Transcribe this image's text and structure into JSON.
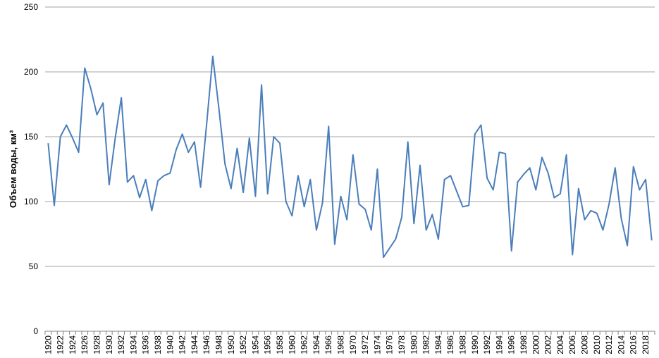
{
  "chart_data": {
    "type": "line",
    "title": "",
    "xlabel": "",
    "ylabel": "Объем воды, км³",
    "ylim": [
      0,
      250
    ],
    "yticks": [
      0,
      50,
      100,
      150,
      200,
      250
    ],
    "grid": "horizontal",
    "legend": "none",
    "line_color": "#4a7ebb",
    "grid_color": "#a6a6a6",
    "x": [
      1920,
      1921,
      1922,
      1923,
      1924,
      1925,
      1926,
      1927,
      1928,
      1929,
      1930,
      1931,
      1932,
      1933,
      1934,
      1935,
      1936,
      1937,
      1938,
      1939,
      1940,
      1941,
      1942,
      1943,
      1944,
      1945,
      1946,
      1947,
      1948,
      1949,
      1950,
      1951,
      1952,
      1953,
      1954,
      1955,
      1956,
      1957,
      1958,
      1959,
      1960,
      1961,
      1962,
      1963,
      1964,
      1965,
      1966,
      1967,
      1968,
      1969,
      1970,
      1971,
      1972,
      1973,
      1974,
      1975,
      1976,
      1977,
      1978,
      1979,
      1980,
      1981,
      1982,
      1983,
      1984,
      1985,
      1986,
      1987,
      1988,
      1989,
      1990,
      1991,
      1992,
      1993,
      1994,
      1995,
      1996,
      1997,
      1998,
      1999,
      2000,
      2001,
      2002,
      2003,
      2004,
      2005,
      2006,
      2007,
      2008,
      2009,
      2010,
      2011,
      2012,
      2013,
      2014,
      2015,
      2016,
      2017,
      2018,
      2019
    ],
    "xtick_labels": [
      "1920",
      "1922",
      "1924",
      "1926",
      "1928",
      "1930",
      "1932",
      "1934",
      "1936",
      "1938",
      "1940",
      "1942",
      "1944",
      "1946",
      "1948",
      "1950",
      "1952",
      "1954",
      "1956",
      "1958",
      "1960",
      "1962",
      "1964",
      "1966",
      "1968",
      "1970",
      "1972",
      "1974",
      "1976",
      "1978",
      "1980",
      "1982",
      "1984",
      "1986",
      "1988",
      "1990",
      "1992",
      "1994",
      "1996",
      "1998",
      "2000",
      "2002",
      "2004",
      "2006",
      "2008",
      "2010",
      "2012",
      "2014",
      "2016",
      "2018"
    ],
    "series": [
      {
        "values": [
          145,
          97,
          150,
          159,
          149,
          138,
          203,
          187,
          167,
          176,
          113,
          149,
          180,
          115,
          120,
          103,
          117,
          93,
          116,
          120,
          122,
          140,
          152,
          138,
          146,
          111,
          160,
          212,
          172,
          129,
          110,
          141,
          107,
          149,
          104,
          190,
          106,
          150,
          145,
          100,
          89,
          120,
          96,
          117,
          78,
          99,
          158,
          67,
          104,
          86,
          136,
          98,
          94,
          78,
          125,
          57,
          64,
          71,
          88,
          146,
          83,
          128,
          78,
          90,
          71,
          117,
          120,
          108,
          96,
          97,
          152,
          159,
          118,
          109,
          138,
          137,
          62,
          115,
          121,
          126,
          109,
          134,
          122,
          103,
          106,
          136,
          59,
          110,
          86,
          93,
          91,
          78,
          98,
          126,
          87,
          66,
          127,
          109,
          117,
          70
        ]
      }
    ]
  }
}
